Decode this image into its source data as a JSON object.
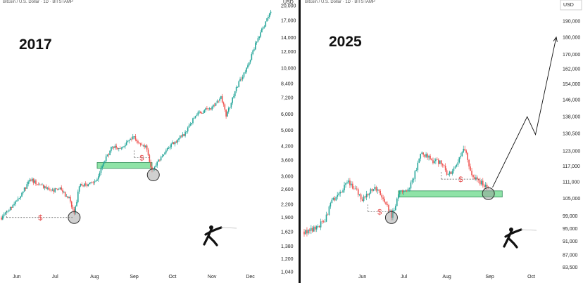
{
  "chart_data": [
    {
      "type": "candlestick",
      "header": "Bitcoin / U.S. Dollar · 1D · BITSTAMP",
      "title": "2017",
      "currency": "USD",
      "price_scale": "log",
      "ylim": [
        1000,
        20000
      ],
      "y_ticks": [
        "20,000",
        "17,000",
        "14,000",
        "12,000",
        "10,000",
        "8,400",
        "7,200",
        "6,000",
        "5,000",
        "4,200",
        "3,600",
        "3,000",
        "2,600",
        "2,200",
        "1,900",
        "1,620",
        "1,380",
        "1,200",
        "1,040"
      ],
      "x_ticks": [
        "Jun",
        "Jul",
        "Aug",
        "Sep",
        "Oct",
        "Nov",
        "Dec"
      ],
      "x_range": [
        "2017-05-20",
        "2017-12-20"
      ],
      "closes": [
        {
          "date": "2017-05-20",
          "close": 1900
        },
        {
          "date": "2017-06-01",
          "close": 2300
        },
        {
          "date": "2017-06-12",
          "close": 2900
        },
        {
          "date": "2017-06-20",
          "close": 2700
        },
        {
          "date": "2017-06-28",
          "close": 2550
        },
        {
          "date": "2017-07-05",
          "close": 2600
        },
        {
          "date": "2017-07-12",
          "close": 2350
        },
        {
          "date": "2017-07-16",
          "close": 1950
        },
        {
          "date": "2017-07-20",
          "close": 2700
        },
        {
          "date": "2017-07-28",
          "close": 2750
        },
        {
          "date": "2017-08-02",
          "close": 2800
        },
        {
          "date": "2017-08-07",
          "close": 3400
        },
        {
          "date": "2017-08-15",
          "close": 4200
        },
        {
          "date": "2017-08-22",
          "close": 4100
        },
        {
          "date": "2017-08-31",
          "close": 4700
        },
        {
          "date": "2017-09-05",
          "close": 4400
        },
        {
          "date": "2017-09-10",
          "close": 4200
        },
        {
          "date": "2017-09-15",
          "close": 3200
        },
        {
          "date": "2017-09-22",
          "close": 3700
        },
        {
          "date": "2017-10-01",
          "close": 4300
        },
        {
          "date": "2017-10-10",
          "close": 4800
        },
        {
          "date": "2017-10-20",
          "close": 6000
        },
        {
          "date": "2017-10-31",
          "close": 6400
        },
        {
          "date": "2017-11-08",
          "close": 7300
        },
        {
          "date": "2017-11-12",
          "close": 5900
        },
        {
          "date": "2017-11-20",
          "close": 8000
        },
        {
          "date": "2017-11-28",
          "close": 10000
        },
        {
          "date": "2017-12-07",
          "close": 14000
        },
        {
          "date": "2017-12-12",
          "close": 16000
        },
        {
          "date": "2017-12-17",
          "close": 19000
        }
      ],
      "annotations": [
        {
          "type": "liquidity_sweep",
          "label": "$",
          "from": "2017-05-24",
          "to": "2017-07-16",
          "price": 1900
        },
        {
          "type": "liquidity_sweep",
          "label": "$",
          "from": "2017-09-01",
          "to": "2017-09-13",
          "price": 3700
        },
        {
          "type": "support_zone",
          "from": "2017-08-03",
          "to": "2017-09-15",
          "low": 3280,
          "high": 3500
        },
        {
          "type": "circle",
          "date": "2017-07-16",
          "price": 1900
        },
        {
          "type": "circle",
          "date": "2017-09-16",
          "price": 3050
        }
      ]
    },
    {
      "type": "candlestick",
      "header": "Bitcoin / U.S. Dollar · 1D · BITSTAMP",
      "title": "2025",
      "currency": "USD",
      "price_scale": "log",
      "ylim": [
        82000,
        200000
      ],
      "y_ticks": [
        "190,000",
        "180,000",
        "170,000",
        "162,000",
        "154,000",
        "146,000",
        "138,000",
        "130,500",
        "123,000",
        "117,000",
        "111,000",
        "105,000",
        "99,000",
        "95,000",
        "91,000",
        "87,000",
        "83,500"
      ],
      "x_ticks": [
        "Jun",
        "Jul",
        "Aug",
        "Sep",
        "Oct"
      ],
      "x_range": [
        "2025-04-20",
        "2025-10-20"
      ],
      "closes": [
        {
          "date": "2025-04-20",
          "close": 94000
        },
        {
          "date": "2025-04-28",
          "close": 95000
        },
        {
          "date": "2025-05-05",
          "close": 97500
        },
        {
          "date": "2025-05-10",
          "close": 104000
        },
        {
          "date": "2025-05-22",
          "close": 111000
        },
        {
          "date": "2025-06-01",
          "close": 105000
        },
        {
          "date": "2025-06-10",
          "close": 109000
        },
        {
          "date": "2025-06-17",
          "close": 104500
        },
        {
          "date": "2025-06-22",
          "close": 99000
        },
        {
          "date": "2025-06-28",
          "close": 107000
        },
        {
          "date": "2025-07-05",
          "close": 108500
        },
        {
          "date": "2025-07-11",
          "close": 117500
        },
        {
          "date": "2025-07-14",
          "close": 122500
        },
        {
          "date": "2025-07-22",
          "close": 119000
        },
        {
          "date": "2025-07-30",
          "close": 118000
        },
        {
          "date": "2025-08-02",
          "close": 113000
        },
        {
          "date": "2025-08-10",
          "close": 120000
        },
        {
          "date": "2025-08-14",
          "close": 124000
        },
        {
          "date": "2025-08-19",
          "close": 114000
        },
        {
          "date": "2025-08-25",
          "close": 111000
        },
        {
          "date": "2025-08-31",
          "close": 108500
        }
      ],
      "projection": [
        {
          "date": "2025-09-03",
          "price": 109000
        },
        {
          "date": "2025-09-28",
          "price": 138000
        },
        {
          "date": "2025-10-04",
          "price": 130000
        },
        {
          "date": "2025-10-19",
          "price": 180000
        }
      ],
      "annotations": [
        {
          "type": "liquidity_sweep",
          "label": "$",
          "from": "2025-06-05",
          "to": "2025-06-22",
          "price": 100500
        },
        {
          "type": "liquidity_sweep",
          "label": "$",
          "from": "2025-07-28",
          "to": "2025-08-25",
          "price": 112000
        },
        {
          "type": "support_zone",
          "from": "2025-06-27",
          "to": "2025-09-10",
          "low": 105500,
          "high": 107700
        },
        {
          "type": "circle",
          "date": "2025-06-22",
          "price": 98500
        },
        {
          "type": "circle",
          "date": "2025-08-31",
          "price": 106700
        }
      ]
    }
  ]
}
